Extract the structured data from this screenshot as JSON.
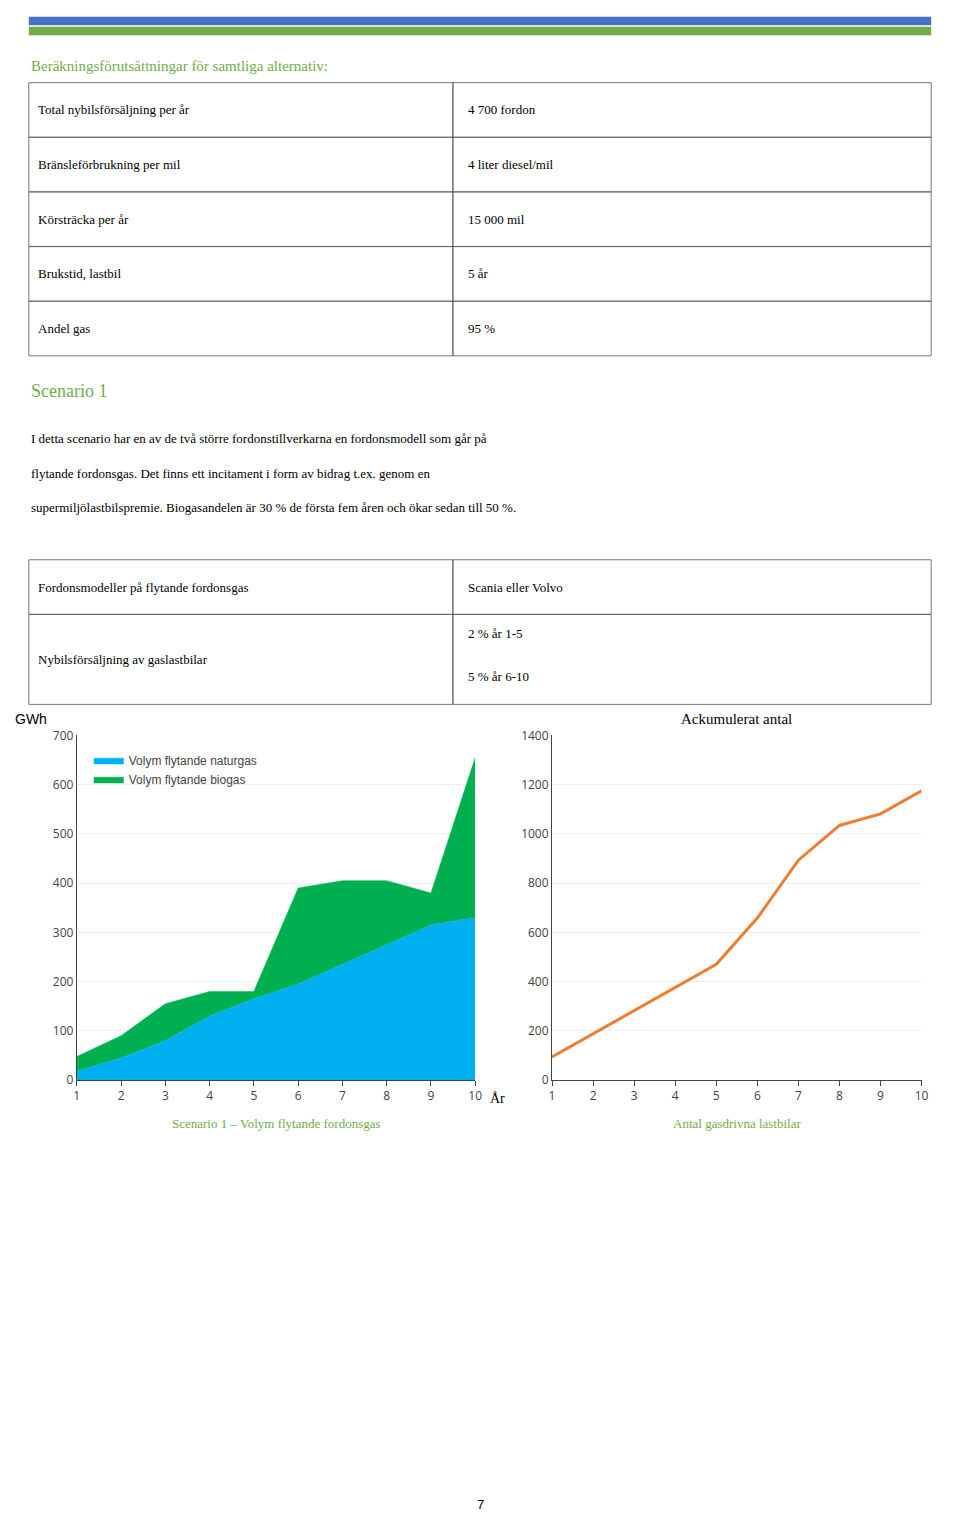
{
  "page": {
    "rule_colors": [
      "#4472c4",
      "#70ad47"
    ],
    "header": {
      "text": "Beräkningsförutsättningar för samtliga alternativ:",
      "color": "#70ad47"
    },
    "table1": [
      [
        "Total nybilsförsäljning per år",
        "4 700 fordon"
      ],
      [
        "Bränsleförbrukning per mil",
        "4 liter diesel/mil"
      ],
      [
        "Körsträcka per år",
        "15 000 mil"
      ],
      [
        "Brukstid, lastbil",
        "5 år"
      ],
      [
        "Andel gas",
        "95 %"
      ]
    ],
    "heading": {
      "text": "Scenario 1",
      "color": "#70ad47"
    },
    "text_lines": [
      "I detta scenario har en av de två större fordonstillverkarna en fordonsmodell som går på",
      "flytande fordonsgas. Det finns ett incitament i form av bidrag t.ex. genom en",
      "supermiljölastbilspremie. Biogasandelen är 30 % de första fem åren och ökar sedan till 50 %."
    ],
    "table2": [
      [
        "Fordonsmodeller på flytande fordonsgas",
        "Scania eller Volvo"
      ],
      [
        "Nybilsförsäljning av gaslastbilar",
        "2 % år 1-5\n5 % år 6-10"
      ]
    ],
    "page_number": "7"
  },
  "chart_data": [
    {
      "type": "area",
      "stacked": true,
      "x": [
        1,
        2,
        3,
        4,
        5,
        6,
        7,
        8,
        9,
        10
      ],
      "xlim": [
        1,
        10
      ],
      "xticks": [
        1,
        2,
        3,
        4,
        5,
        6,
        7,
        8,
        9,
        10
      ],
      "xlabel": "År",
      "ylabel": "GWh",
      "ylim": [
        0,
        700
      ],
      "yticks": [
        0,
        100,
        200,
        300,
        400,
        500,
        600,
        700
      ],
      "grid": true,
      "legend": "upper left",
      "series": [
        {
          "name": "Volym flytande naturgas",
          "color": "#00b0f0",
          "values": [
            18,
            45,
            80,
            130,
            165,
            195,
            235,
            275,
            315,
            330
          ]
        },
        {
          "name": "Volym flytande biogas",
          "color": "#00b050",
          "values": [
            30,
            45,
            75,
            50,
            15,
            195,
            170,
            130,
            65,
            325
          ]
        }
      ],
      "annotations": [
        {
          "text": "Scenario 1 – Volym flytande fordonsgas",
          "color": "#70ad47"
        }
      ]
    },
    {
      "type": "line",
      "title": "Ackumulerat antal",
      "x": [
        1,
        2,
        3,
        4,
        5,
        6,
        7,
        8,
        9,
        10
      ],
      "xlim": [
        1,
        10
      ],
      "xticks": [
        1,
        2,
        3,
        4,
        5,
        6,
        7,
        8,
        9,
        10
      ],
      "values": [
        94,
        188,
        282,
        376,
        470,
        658,
        893,
        1034,
        1081,
        1175
      ],
      "color": "#ed7d31",
      "ylim": [
        0,
        1400
      ],
      "yticks": [
        0,
        200,
        400,
        600,
        800,
        1000,
        1200,
        1400
      ],
      "grid": true,
      "annotations": [
        {
          "text": "Antal gasdrivna lastbilar",
          "color": "#70ad47"
        }
      ]
    }
  ]
}
